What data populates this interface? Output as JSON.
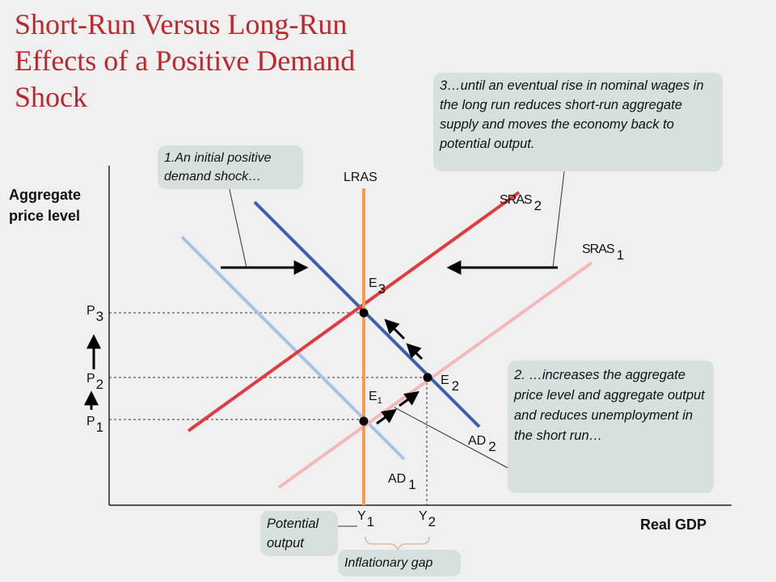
{
  "title": "Short-Run Versus Long-Run Effects of a Positive Demand Shock",
  "callouts": {
    "c1": "1.An initial  positive demand shock…",
    "c2": "2. …increases the aggregate price level and aggregate output and reduces unemployment in the short run…",
    "c3": "3…until an eventual rise in nominal wages in the long run reduces short-run aggregate supply and moves the economy back to potential output.",
    "potential_output": "Potential output",
    "inflationary_gap": "Inflationary gap"
  },
  "axes": {
    "y_title": "Aggregate price level",
    "x_title": "Real GDP"
  },
  "curves": {
    "lras": "LRAS",
    "sras1_main": "SRAS",
    "sras1_sub": "1",
    "sras2_main": "SRAS",
    "sras2_sub": "2",
    "ad1_main": "AD",
    "ad1_sub": "1",
    "ad2_main": "AD",
    "ad2_sub": "2"
  },
  "points": {
    "e1_main": "E",
    "e1_sub": "1",
    "e2_main": "E",
    "e2_sub": "2",
    "e3_main": "E",
    "e3_sub": "3"
  },
  "ticks": {
    "p1_main": "P",
    "p1_sub": "1",
    "p2_main": "P",
    "p2_sub": "2",
    "p3_main": "P",
    "p3_sub": "3",
    "y1_main": "Y",
    "y1_sub": "1",
    "y2_main": "Y",
    "y2_sub": "2"
  },
  "colors": {
    "lras": "#f59a4f",
    "ad1": "#a9c3e8",
    "ad2": "#3f5fa8",
    "sras1": "#f5b8ba",
    "sras2": "#e23a3e",
    "title": "#c0272d",
    "callout_bg": "#d6e0df"
  }
}
